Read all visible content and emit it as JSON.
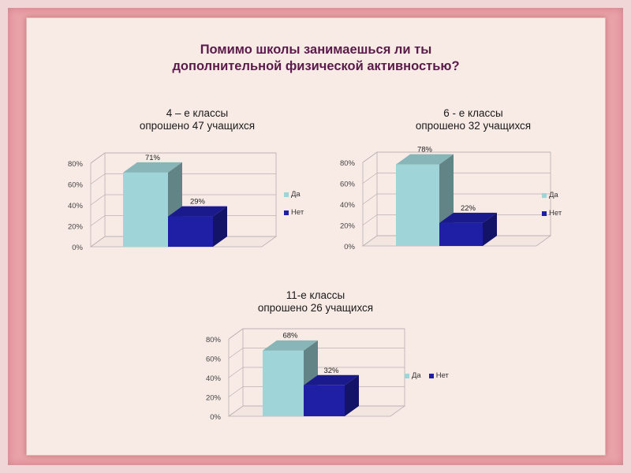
{
  "slide": {
    "title": "Помимо школы занимаешься ли ты\nдополнительной физической активностью?"
  },
  "colors": {
    "yes": "#9fd5d8",
    "no": "#1f1fa6",
    "title": "#5a1a4a"
  },
  "chart_data": [
    {
      "type": "bar",
      "title": "4 – е классы\nопрошено 47 учащихся",
      "categories": [
        "Да",
        "Нет"
      ],
      "values": [
        71,
        29
      ],
      "data_labels": [
        "71%",
        "29%"
      ],
      "y_ticks": [
        "0%",
        "20%",
        "40%",
        "60%",
        "80%"
      ],
      "ylim": [
        0,
        80
      ],
      "legend": [
        "Да",
        "Нет"
      ],
      "legend_position": "right",
      "grid": true,
      "style": "3d"
    },
    {
      "type": "bar",
      "title": "6 - е классы\nопрошено 32 учащихся",
      "categories": [
        "Да",
        "Нет"
      ],
      "values": [
        78,
        22
      ],
      "data_labels": [
        "78%",
        "22%"
      ],
      "y_ticks": [
        "0%",
        "20%",
        "40%",
        "60%",
        "80%"
      ],
      "ylim": [
        0,
        80
      ],
      "legend": [
        "Да",
        "Нет"
      ],
      "legend_position": "right",
      "grid": true,
      "style": "3d"
    },
    {
      "type": "bar",
      "title": "11-е классы\nопрошено 26 учащихся",
      "categories": [
        "Да",
        "Нет"
      ],
      "values": [
        68,
        32
      ],
      "data_labels": [
        "68%",
        "32%"
      ],
      "y_ticks": [
        "0%",
        "20%",
        "40%",
        "60%",
        "80%"
      ],
      "ylim": [
        0,
        80
      ],
      "legend": [
        "Да",
        "Нет"
      ],
      "legend_position": "right",
      "grid": true,
      "style": "3d"
    }
  ]
}
